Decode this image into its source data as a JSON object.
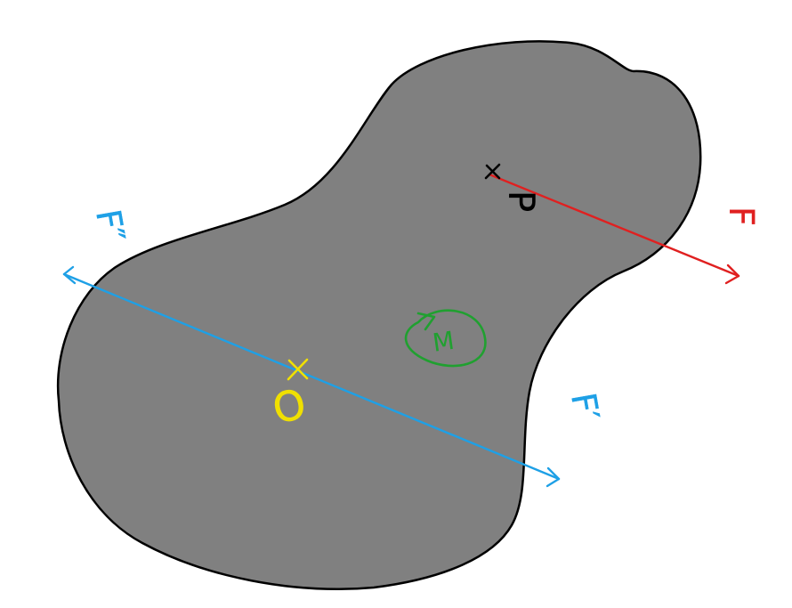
{
  "diagram": {
    "description_free": true,
    "colors": {
      "background": "#ffffff",
      "body_fill": "#808080",
      "body_outline": "#000000",
      "force_blue": "#1ea0e6",
      "force_red": "#e02020",
      "point_yellow": "#f0e000",
      "moment_green": "#20a030",
      "point_black": "#000000"
    },
    "labels": {
      "point_o": "O",
      "point_p": "P",
      "moment": "M",
      "force_f": "F",
      "force_f_prime": "F′",
      "force_f_double_prime": "F″"
    }
  }
}
